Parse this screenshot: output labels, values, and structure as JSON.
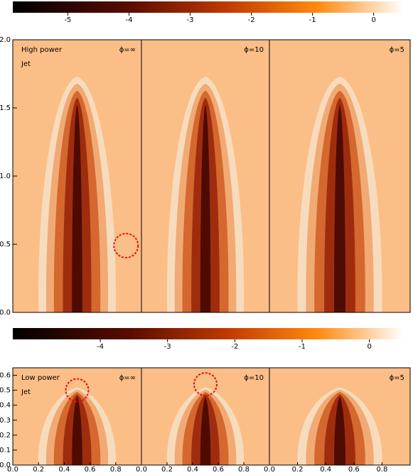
{
  "colorbars": [
    {
      "lim": [
        -5.9,
        0.48
      ],
      "ticks": [
        -5,
        -4,
        -3,
        -2,
        -1,
        0
      ]
    },
    {
      "lim": [
        -5.3,
        0.5
      ],
      "ticks": [
        -4,
        -3,
        -2,
        -1,
        0
      ]
    }
  ],
  "top_row": {
    "label": [
      "High power",
      "Jet"
    ],
    "ylim": [
      0,
      2
    ],
    "yticks": [
      {
        "value": 0,
        "label": "0.0"
      },
      {
        "value": 0.5,
        "label": "0.5"
      },
      {
        "value": 1,
        "label": "1.0"
      },
      {
        "value": 1.5,
        "label": "1.5"
      },
      {
        "value": 2,
        "label": "2.0"
      }
    ],
    "panels": [
      {
        "title": "ϕ=∞"
      },
      {
        "title": "ϕ=10"
      },
      {
        "title": "ϕ=5"
      }
    ]
  },
  "bottom_row": {
    "label": [
      "Low power",
      "Jet"
    ],
    "ylim": [
      0,
      0.65
    ],
    "yticks": [
      {
        "value": 0,
        "label": "0.0"
      },
      {
        "value": 0.1,
        "label": "0.1"
      },
      {
        "value": 0.2,
        "label": "0.2"
      },
      {
        "value": 0.3,
        "label": "0.3"
      },
      {
        "value": 0.4,
        "label": "0.4"
      },
      {
        "value": 0.5,
        "label": "0.5"
      },
      {
        "value": 0.6,
        "label": "0.6"
      }
    ],
    "xlim": [
      0,
      1
    ],
    "xticks": [
      {
        "value": 0,
        "label": "0.0"
      },
      {
        "value": 0.2,
        "label": "0.2"
      },
      {
        "value": 0.4,
        "label": "0.4"
      },
      {
        "value": 0.6,
        "label": "0.6"
      },
      {
        "value": 0.8,
        "label": "0.8"
      }
    ],
    "panels": [
      {
        "title": "ϕ=∞"
      },
      {
        "title": "ϕ=10"
      },
      {
        "title": "ϕ=5"
      }
    ]
  }
}
